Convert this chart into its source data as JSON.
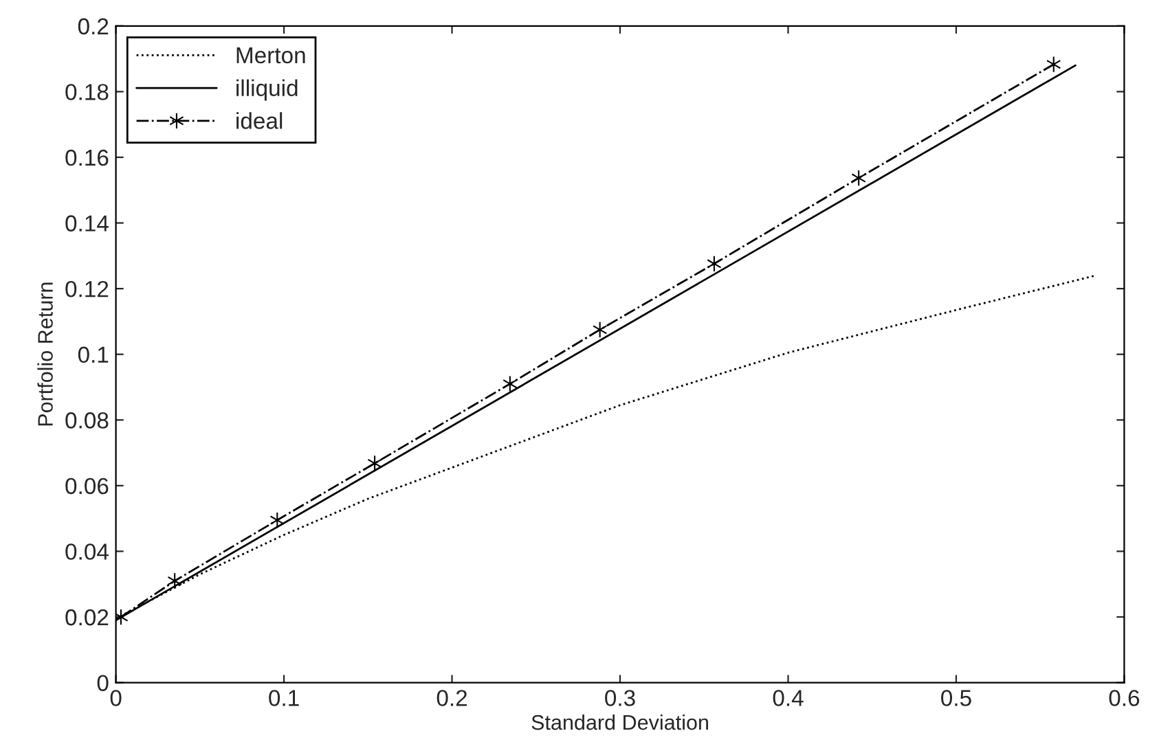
{
  "chart_data": {
    "type": "line",
    "xlabel": "Standard Deviation",
    "ylabel": "Portfolio Return",
    "xlim": [
      0,
      0.6
    ],
    "xticks": [
      0,
      0.1,
      0.2,
      0.3,
      0.4,
      0.5,
      0.6
    ],
    "ylim": [
      0,
      0.2
    ],
    "yticks": [
      0,
      0.02,
      0.04,
      0.06,
      0.08,
      0.1,
      0.12,
      0.14,
      0.16,
      0.18,
      0.2
    ],
    "grid": false,
    "legend": "top left",
    "series": [
      {
        "name": "Merton",
        "color": "#000000",
        "line_style": "dotted",
        "marker": "none",
        "x": [
          0,
          0.05,
          0.1,
          0.15,
          0.2,
          0.25,
          0.3,
          0.4,
          0.5,
          0.583
        ],
        "values": [
          0.0195,
          0.033,
          0.045,
          0.056,
          0.0655,
          0.075,
          0.0845,
          0.1005,
          0.1135,
          0.124
        ]
      },
      {
        "name": "illiquid",
        "color": "#000000",
        "line_style": "solid",
        "marker": "none",
        "x": [
          0,
          0.571
        ],
        "values": [
          0.019,
          0.188
        ]
      },
      {
        "name": "ideal",
        "color": "#000000",
        "line_style": "dashdot",
        "marker": "cross",
        "x": [
          0.003,
          0.035,
          0.096,
          0.154,
          0.2345,
          0.288,
          0.356,
          0.442,
          0.558
        ],
        "values": [
          0.02,
          0.031,
          0.0495,
          0.0668,
          0.091,
          0.1075,
          0.1276,
          0.1537,
          0.1883
        ]
      }
    ]
  }
}
